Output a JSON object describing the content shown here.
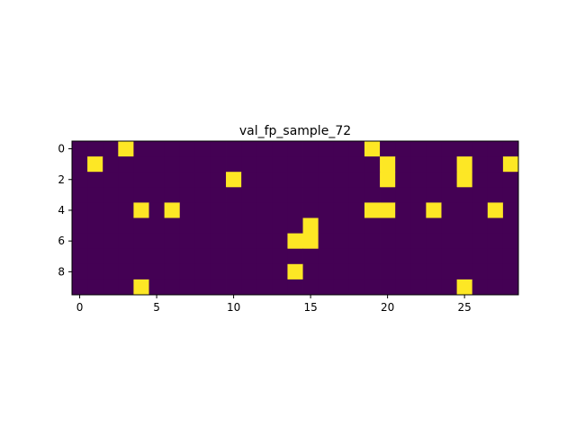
{
  "chart_data": {
    "type": "heatmap",
    "title": "val_fp_sample_72",
    "xlabel": "",
    "ylabel": "",
    "rows": 10,
    "cols": 29,
    "xlim": [
      -0.5,
      28.5
    ],
    "ylim": [
      9.5,
      -0.5
    ],
    "x_ticks": [
      0,
      5,
      10,
      15,
      20,
      25
    ],
    "y_ticks": [
      0,
      2,
      4,
      6,
      8
    ],
    "grid": false,
    "colormap": "viridis",
    "colors": {
      "0": "#440154",
      "1": "#fde725"
    },
    "values": [
      [
        0,
        0,
        0,
        1,
        0,
        0,
        0,
        0,
        0,
        0,
        0,
        0,
        0,
        0,
        0,
        0,
        0,
        0,
        0,
        1,
        0,
        0,
        0,
        0,
        0,
        0,
        0,
        0,
        0
      ],
      [
        0,
        1,
        0,
        0,
        0,
        0,
        0,
        0,
        0,
        0,
        0,
        0,
        0,
        0,
        0,
        0,
        0,
        0,
        0,
        0,
        1,
        0,
        0,
        0,
        0,
        1,
        0,
        0,
        1
      ],
      [
        0,
        0,
        0,
        0,
        0,
        0,
        0,
        0,
        0,
        0,
        1,
        0,
        0,
        0,
        0,
        0,
        0,
        0,
        0,
        0,
        1,
        0,
        0,
        0,
        0,
        1,
        0,
        0,
        0
      ],
      [
        0,
        0,
        0,
        0,
        0,
        0,
        0,
        0,
        0,
        0,
        0,
        0,
        0,
        0,
        0,
        0,
        0,
        0,
        0,
        0,
        0,
        0,
        0,
        0,
        0,
        0,
        0,
        0,
        0
      ],
      [
        0,
        0,
        0,
        0,
        1,
        0,
        1,
        0,
        0,
        0,
        0,
        0,
        0,
        0,
        0,
        0,
        0,
        0,
        0,
        1,
        1,
        0,
        0,
        1,
        0,
        0,
        0,
        1,
        0
      ],
      [
        0,
        0,
        0,
        0,
        0,
        0,
        0,
        0,
        0,
        0,
        0,
        0,
        0,
        0,
        0,
        1,
        0,
        0,
        0,
        0,
        0,
        0,
        0,
        0,
        0,
        0,
        0,
        0,
        0
      ],
      [
        0,
        0,
        0,
        0,
        0,
        0,
        0,
        0,
        0,
        0,
        0,
        0,
        0,
        0,
        1,
        1,
        0,
        0,
        0,
        0,
        0,
        0,
        0,
        0,
        0,
        0,
        0,
        0,
        0
      ],
      [
        0,
        0,
        0,
        0,
        0,
        0,
        0,
        0,
        0,
        0,
        0,
        0,
        0,
        0,
        0,
        0,
        0,
        0,
        0,
        0,
        0,
        0,
        0,
        0,
        0,
        0,
        0,
        0,
        0
      ],
      [
        0,
        0,
        0,
        0,
        0,
        0,
        0,
        0,
        0,
        0,
        0,
        0,
        0,
        0,
        1,
        0,
        0,
        0,
        0,
        0,
        0,
        0,
        0,
        0,
        0,
        0,
        0,
        0,
        0
      ],
      [
        0,
        0,
        0,
        0,
        1,
        0,
        0,
        0,
        0,
        0,
        0,
        0,
        0,
        0,
        0,
        0,
        0,
        0,
        0,
        0,
        0,
        0,
        0,
        0,
        0,
        1,
        0,
        0,
        0
      ]
    ]
  }
}
